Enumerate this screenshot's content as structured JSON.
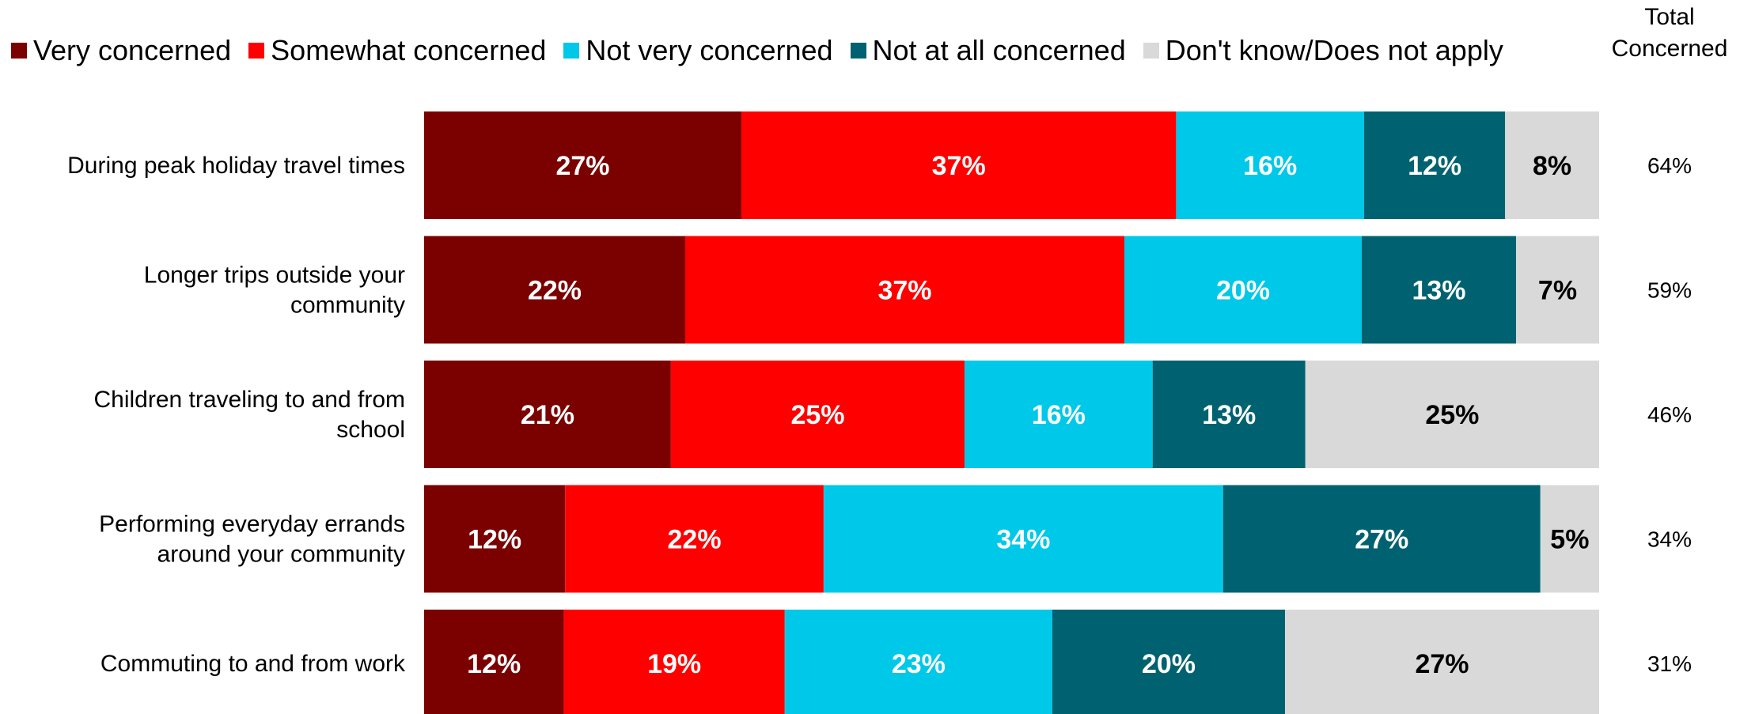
{
  "legend": {
    "very": "Very concerned",
    "somewhat": "Somewhat concerned",
    "notvery": "Not very concerned",
    "notatall": "Not at all concerned",
    "dk": "Don't know/Does not apply"
  },
  "total_header_line1": "Total",
  "total_header_line2": "Concerned",
  "chart_data": {
    "type": "bar",
    "orientation": "horizontal",
    "stacked": true,
    "unit": "%",
    "categories": [
      "During peak holiday travel times",
      "Longer trips outside your community",
      "Children traveling to and from school",
      "Performing everyday errands around your community",
      "Commuting to and from work"
    ],
    "series": [
      {
        "name": "Very concerned",
        "color": "#7b0000",
        "text_color": "#ffffff",
        "values": [
          27,
          22,
          21,
          12,
          12
        ]
      },
      {
        "name": "Somewhat concerned",
        "color": "#ff0000",
        "text_color": "#ffffff",
        "values": [
          37,
          37,
          25,
          22,
          19
        ]
      },
      {
        "name": "Not very concerned",
        "color": "#00c8e8",
        "text_color": "#ffffff",
        "values": [
          16,
          20,
          16,
          34,
          23
        ]
      },
      {
        "name": "Not at all concerned",
        "color": "#006270",
        "text_color": "#ffffff",
        "values": [
          12,
          13,
          13,
          27,
          20
        ]
      },
      {
        "name": "Don't know/Does not apply",
        "color": "#d9d9d9",
        "text_color": "#000000",
        "values": [
          8,
          7,
          25,
          5,
          27
        ]
      }
    ],
    "total_concerned": [
      64,
      59,
      46,
      34,
      31
    ],
    "legend_position": "top",
    "grid": false
  }
}
